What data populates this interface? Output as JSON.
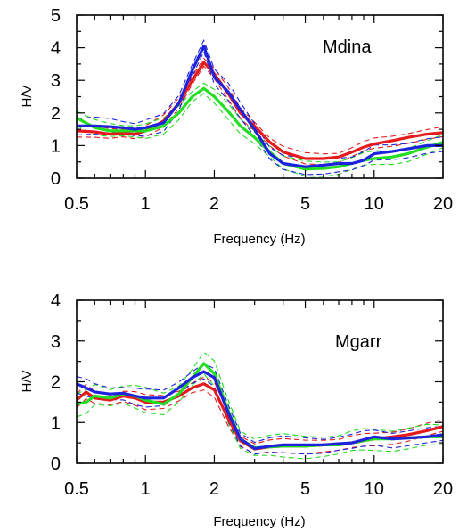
{
  "chart_data": [
    {
      "type": "line",
      "station": "Mdina",
      "xlabel": "Frequency (Hz)",
      "ylabel": "H/V",
      "xscale": "log",
      "xlim": [
        0.5,
        20
      ],
      "ylim": [
        0,
        5
      ],
      "x_ticks": [
        0.5,
        1,
        2,
        5,
        10,
        20
      ],
      "x_tick_labels": [
        "0.5",
        "1",
        "2",
        "5",
        "10",
        "20"
      ],
      "y_ticks": [
        0,
        1,
        2,
        3,
        4,
        5
      ],
      "y_tick_labels": [
        "0",
        "1",
        "2",
        "3",
        "4",
        "5"
      ],
      "x": [
        0.5,
        0.6,
        0.7,
        0.8,
        0.9,
        1.0,
        1.2,
        1.4,
        1.6,
        1.8,
        2.0,
        2.3,
        2.6,
        3.0,
        3.5,
        4.0,
        5.0,
        6.0,
        7.0,
        8.0,
        9.0,
        10.0,
        12.0,
        14.0,
        17.0,
        20.0
      ],
      "series": [
        {
          "color": "#e41a1c",
          "values": [
            1.45,
            1.42,
            1.35,
            1.38,
            1.35,
            1.45,
            1.75,
            2.3,
            3.0,
            3.55,
            3.2,
            2.6,
            2.0,
            1.6,
            1.1,
            0.8,
            0.6,
            0.6,
            0.65,
            0.8,
            0.95,
            1.05,
            1.15,
            1.25,
            1.35,
            1.4
          ],
          "band": 0.15
        },
        {
          "color": "#22dd22",
          "values": [
            1.85,
            1.55,
            1.45,
            1.45,
            1.45,
            1.45,
            1.6,
            2.0,
            2.5,
            2.75,
            2.5,
            2.05,
            1.6,
            1.25,
            0.8,
            0.45,
            0.28,
            0.3,
            0.35,
            0.45,
            0.55,
            0.6,
            0.65,
            0.75,
            0.95,
            1.1
          ],
          "band": 0.2
        },
        {
          "color": "#1e22dd",
          "values": [
            1.6,
            1.6,
            1.58,
            1.55,
            1.5,
            1.55,
            1.7,
            2.3,
            3.3,
            4.05,
            3.1,
            2.65,
            2.1,
            1.5,
            0.75,
            0.45,
            0.35,
            0.4,
            0.45,
            0.45,
            0.55,
            0.75,
            0.82,
            0.9,
            1.0,
            1.0
          ],
          "band": 0.22
        }
      ]
    },
    {
      "type": "line",
      "station": "Mgarr",
      "xlabel": "Frequency (Hz)",
      "ylabel": "H/V",
      "xscale": "log",
      "xlim": [
        0.5,
        20
      ],
      "ylim": [
        0,
        4
      ],
      "x_ticks": [
        0.5,
        1,
        2,
        5,
        10,
        20
      ],
      "x_tick_labels": [
        "0.5",
        "1",
        "2",
        "5",
        "10",
        "20"
      ],
      "y_ticks": [
        0,
        1,
        2,
        3,
        4
      ],
      "y_tick_labels": [
        "0",
        "1",
        "2",
        "3",
        "4"
      ],
      "x": [
        0.5,
        0.55,
        0.6,
        0.7,
        0.8,
        0.9,
        1.0,
        1.2,
        1.4,
        1.6,
        1.8,
        2.0,
        2.3,
        2.6,
        3.0,
        3.5,
        4.0,
        5.0,
        6.0,
        7.0,
        8.0,
        9.0,
        10.0,
        12.0,
        14.0,
        17.0,
        20.0
      ],
      "series": [
        {
          "color": "#e41a1c",
          "values": [
            1.55,
            1.75,
            1.6,
            1.55,
            1.65,
            1.6,
            1.5,
            1.5,
            1.65,
            1.85,
            1.95,
            1.8,
            1.1,
            0.55,
            0.35,
            0.4,
            0.42,
            0.42,
            0.45,
            0.45,
            0.5,
            0.55,
            0.6,
            0.65,
            0.7,
            0.8,
            0.9
          ],
          "band": 0.15
        },
        {
          "color": "#22dd22",
          "values": [
            1.45,
            1.5,
            1.65,
            1.6,
            1.7,
            1.65,
            1.55,
            1.45,
            1.7,
            2.1,
            2.45,
            2.2,
            1.3,
            0.6,
            0.38,
            0.4,
            0.42,
            0.42,
            0.45,
            0.45,
            0.5,
            0.55,
            0.6,
            0.6,
            0.62,
            0.65,
            0.65
          ],
          "band": 0.25
        },
        {
          "color": "#1e22dd",
          "values": [
            1.95,
            1.85,
            1.75,
            1.7,
            1.72,
            1.65,
            1.6,
            1.6,
            1.85,
            2.1,
            2.25,
            2.1,
            1.25,
            0.6,
            0.36,
            0.42,
            0.45,
            0.45,
            0.45,
            0.48,
            0.5,
            0.58,
            0.65,
            0.6,
            0.62,
            0.65,
            0.7
          ],
          "band": 0.18
        }
      ]
    }
  ]
}
